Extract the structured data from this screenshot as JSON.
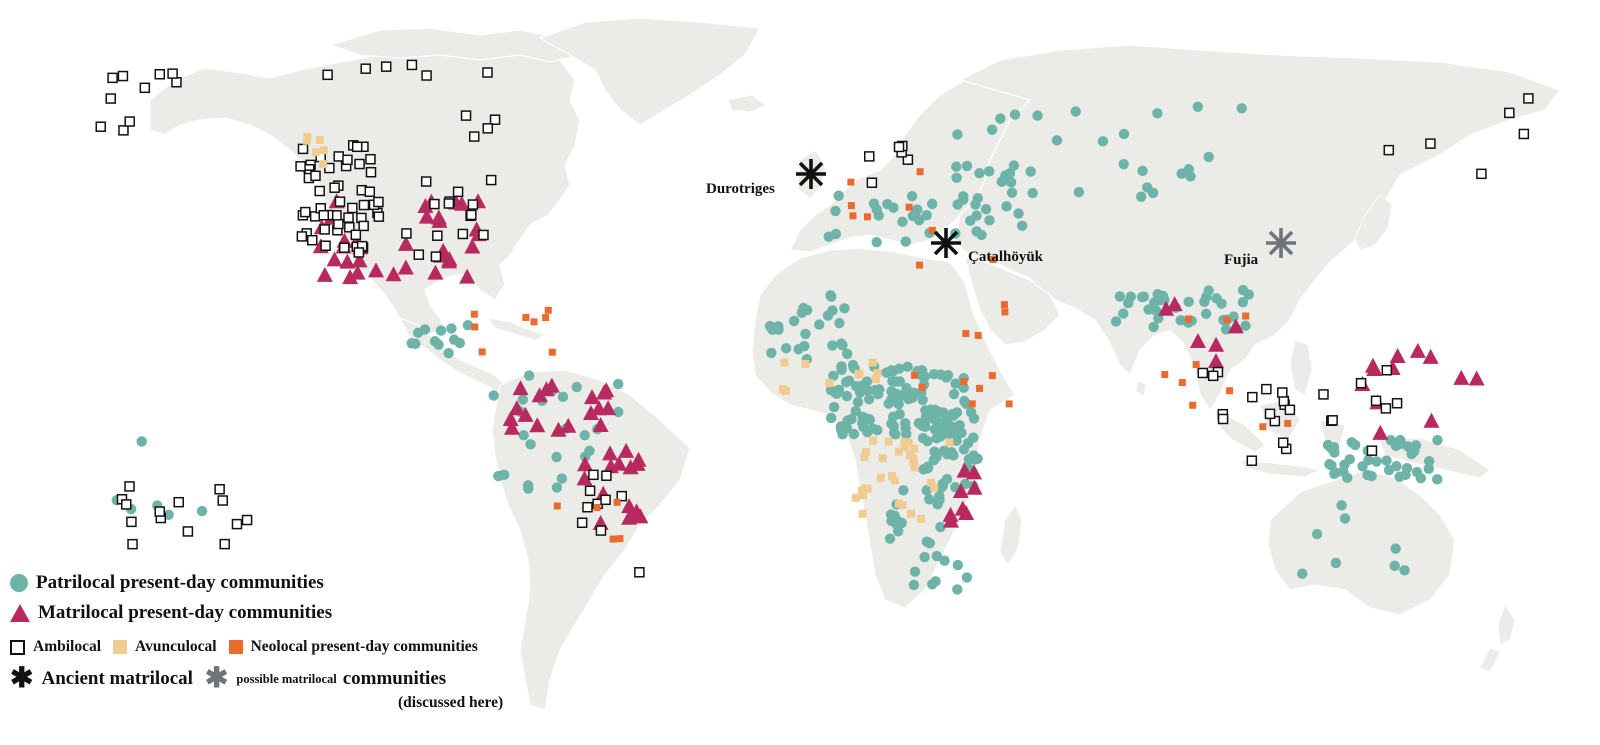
{
  "map": {
    "colors": {
      "land": "#ebebe8",
      "ocean": "#ffffff",
      "patrilocal": "#6db3a8",
      "matrilocal": "#b82a5f",
      "ambilocal_stroke": "#111111",
      "avunculocal": "#f1cc92",
      "neolocal": "#ec6a2c",
      "ancient_matrilocal": "#111111",
      "possible_matrilocal": "#6f747a"
    },
    "sites": [
      {
        "name": "Durotriges",
        "type": "ancient_matrilocal",
        "lat": 50.7,
        "lon": -2.4
      },
      {
        "name": "Çatalhöyük",
        "type": "ancient_matrilocal",
        "lat": 37.7,
        "lon": 32.8
      },
      {
        "name": "Fujia",
        "type": "possible_matrilocal",
        "lat": 36.4,
        "lon": 116.9
      }
    ]
  },
  "legend": {
    "patrilocal": "Patrilocal present-day communities",
    "matrilocal": "Matrilocal present-day communities",
    "ambilocal": "Ambilocal",
    "avunculocal": "Avunculocal",
    "neolocal": "Neolocal",
    "present_day_communities": "present-day communities",
    "ancient_matrilocal": "Ancient matrilocal",
    "possible_matrilocal": "possible matrilocal",
    "communities": "communities",
    "discussed_here": "(discussed here)"
  }
}
